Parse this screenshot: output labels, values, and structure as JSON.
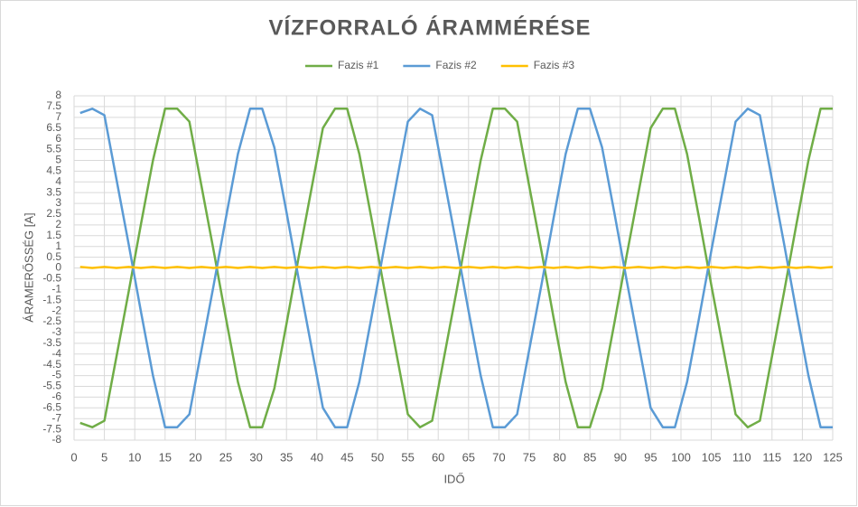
{
  "chart_data": {
    "type": "line",
    "title": "VÍZFORRALÓ ÁRAMMÉRÉSE",
    "xlabel": "IDŐ",
    "ylabel": "ÁRAMERŐSSÉG [A]",
    "x": [
      1,
      3,
      5,
      7,
      9,
      11,
      13,
      15,
      17,
      19,
      21,
      23,
      25,
      27,
      29,
      31,
      33,
      35,
      37,
      39,
      41,
      43,
      45,
      47,
      49,
      51,
      53,
      55,
      57,
      59,
      61,
      63,
      65,
      67,
      69,
      71,
      73,
      75,
      77,
      79,
      81,
      83,
      85,
      87,
      89,
      91,
      93,
      95,
      97,
      99,
      101,
      103,
      105,
      107,
      109,
      111,
      113,
      115,
      117,
      119,
      121,
      123,
      125
    ],
    "series": [
      {
        "name": "Fazis #1",
        "color": "#70ad47",
        "values": [
          -7.2,
          -7.4,
          -7.1,
          -4.1,
          -1.1,
          2.0,
          5.0,
          7.4,
          7.4,
          6.8,
          3.8,
          0.8,
          -2.3,
          -5.3,
          -7.4,
          -7.4,
          -5.6,
          -2.6,
          0.5,
          3.5,
          6.5,
          7.4,
          7.4,
          5.3,
          2.3,
          -0.8,
          -3.8,
          -6.8,
          -7.4,
          -7.1,
          -4.1,
          -1.1,
          2.0,
          5.0,
          7.4,
          7.4,
          6.8,
          3.8,
          0.8,
          -2.3,
          -5.3,
          -7.4,
          -7.4,
          -5.6,
          -2.6,
          0.5,
          3.5,
          6.5,
          7.4,
          7.4,
          5.3,
          2.3,
          -0.8,
          -3.8,
          -6.8,
          -7.4,
          -7.1,
          -4.1,
          -1.1,
          2.0,
          5.0,
          7.4,
          7.4
        ]
      },
      {
        "name": "Fazis #2",
        "color": "#5b9bd5",
        "values": [
          7.2,
          7.4,
          7.1,
          4.1,
          1.1,
          -2.0,
          -5.0,
          -7.4,
          -7.4,
          -6.8,
          -3.8,
          -0.8,
          2.3,
          5.3,
          7.4,
          7.4,
          5.6,
          2.6,
          -0.5,
          -3.5,
          -6.5,
          -7.4,
          -7.4,
          -5.3,
          -2.3,
          0.8,
          3.8,
          6.8,
          7.4,
          7.1,
          4.1,
          1.1,
          -2.0,
          -5.0,
          -7.4,
          -7.4,
          -6.8,
          -3.8,
          -0.8,
          2.3,
          5.3,
          7.4,
          7.4,
          5.6,
          2.6,
          -0.5,
          -3.5,
          -6.5,
          -7.4,
          -7.4,
          -5.3,
          -2.3,
          0.8,
          3.8,
          6.8,
          7.4,
          7.1,
          4.1,
          1.1,
          -2.0,
          -5.0,
          -7.4,
          -7.4
        ]
      },
      {
        "name": "Fazis #3",
        "color": "#ffc000",
        "values": [
          0.05,
          0.0,
          0.05,
          0.0,
          0.05,
          0.0,
          0.05,
          0.0,
          0.05,
          0.0,
          0.05,
          0.0,
          0.05,
          0.0,
          0.05,
          0.0,
          0.05,
          0.0,
          0.05,
          0.0,
          0.05,
          0.0,
          0.05,
          0.0,
          0.05,
          0.0,
          0.05,
          0.0,
          0.05,
          0.0,
          0.05,
          0.0,
          0.05,
          0.0,
          0.05,
          0.0,
          0.05,
          0.0,
          0.05,
          0.0,
          0.05,
          0.0,
          0.05,
          0.0,
          0.05,
          0.0,
          0.05,
          0.0,
          0.05,
          0.0,
          0.05,
          0.0,
          0.05,
          0.0,
          0.05,
          0.0,
          0.05,
          0.0,
          0.05,
          0.0,
          0.05,
          0.0,
          0.05
        ]
      }
    ],
    "xlim": [
      0,
      125
    ],
    "xticks": [
      0,
      5,
      10,
      15,
      20,
      25,
      30,
      35,
      40,
      45,
      50,
      55,
      60,
      65,
      70,
      75,
      80,
      85,
      90,
      95,
      100,
      105,
      110,
      115,
      120,
      125
    ],
    "ylim": [
      -8,
      8
    ],
    "yticks": [
      -8,
      -7.5,
      -7,
      -6.5,
      -6,
      -5.5,
      -5,
      -4.5,
      -4,
      -3.5,
      -3,
      -2.5,
      -2,
      -1.5,
      -1,
      -0.5,
      0,
      0.5,
      1,
      1.5,
      2,
      2.5,
      3,
      3.5,
      4,
      4.5,
      5,
      5.5,
      6,
      6.5,
      7,
      7.5,
      8
    ],
    "grid": true,
    "legend": "top"
  }
}
